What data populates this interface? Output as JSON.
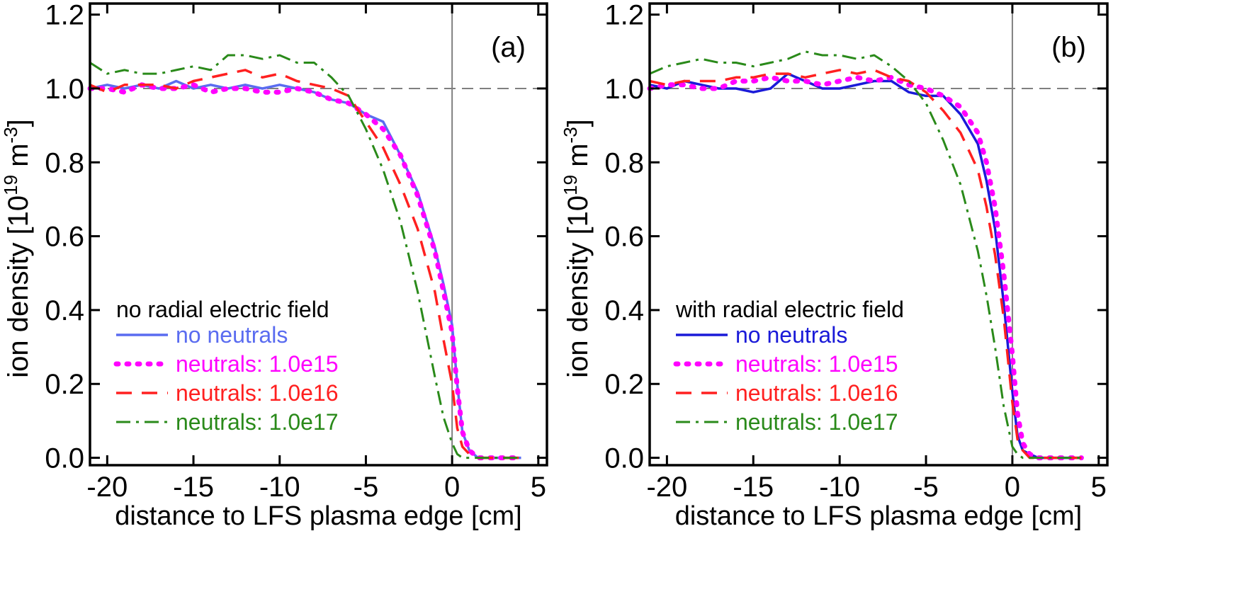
{
  "figure": {
    "panels": [
      {
        "label": "(a)",
        "legend_title": "no radial electric field"
      },
      {
        "label": "(b)",
        "legend_title": "with radial electric field"
      }
    ]
  },
  "chart_data": [
    {
      "type": "line",
      "panel_label": "(a)",
      "xlabel": "distance to LFS plasma edge [cm]",
      "ylabel": "ion density [10^19 m^-3]",
      "xlim": [
        -21,
        5.5
      ],
      "ylim": [
        -0.02,
        1.23
      ],
      "xticks": [
        -20,
        -15,
        -10,
        -5,
        0,
        5
      ],
      "xtick_labels": [
        "-20",
        "-15",
        "-10",
        "-5",
        "0",
        "5"
      ],
      "yticks": [
        0.0,
        0.2,
        0.4,
        0.6,
        0.8,
        1.0,
        1.2
      ],
      "ytick_labels": [
        "0.0",
        "0.2",
        "0.4",
        "0.6",
        "0.8",
        "1.0",
        "1.2"
      ],
      "reference_lines": {
        "horizontal": 1.0,
        "vertical": 0
      },
      "legend_title": "no radial electric field",
      "legend_placement": "lower-left",
      "series": [
        {
          "name": "no neutrals",
          "color": "#5a6cf0",
          "style": "solid",
          "x": [
            -21,
            -20,
            -19,
            -18,
            -17,
            -16,
            -15,
            -14,
            -13,
            -12,
            -11,
            -10,
            -9,
            -8,
            -7,
            -6,
            -5,
            -4,
            -3,
            -2,
            -1,
            -0.5,
            0,
            0.3,
            0.6,
            1,
            1.5,
            2,
            3,
            4
          ],
          "y": [
            1.0,
            1.01,
            1.0,
            1.01,
            1.0,
            1.02,
            1.0,
            1.01,
            1.0,
            1.01,
            1.0,
            1.01,
            1.0,
            0.99,
            0.97,
            0.96,
            0.93,
            0.91,
            0.82,
            0.72,
            0.57,
            0.47,
            0.36,
            0.2,
            0.07,
            0.02,
            0.0,
            0.0,
            0.0,
            0.0
          ]
        },
        {
          "name": "neutrals: 1.0e15",
          "color": "#ff00ff",
          "style": "dotted",
          "x": [
            -21,
            -20,
            -19,
            -18,
            -17,
            -16,
            -15,
            -14,
            -13,
            -12,
            -11,
            -10,
            -9,
            -8,
            -7,
            -6,
            -5,
            -4,
            -3,
            -2,
            -1,
            -0.5,
            0,
            0.3,
            0.6,
            1,
            1.5,
            2,
            3,
            4
          ],
          "y": [
            1.0,
            1.0,
            0.99,
            1.01,
            1.0,
            1.0,
            1.01,
            0.99,
            1.0,
            1.0,
            0.99,
            0.99,
            1.0,
            0.99,
            0.97,
            0.96,
            0.93,
            0.89,
            0.82,
            0.71,
            0.56,
            0.45,
            0.34,
            0.19,
            0.07,
            0.02,
            0.0,
            0.0,
            0.0,
            0.0
          ]
        },
        {
          "name": "neutrals: 1.0e16",
          "color": "#ff2020",
          "style": "dashed",
          "x": [
            -21,
            -20,
            -19,
            -18,
            -17,
            -16,
            -15,
            -14,
            -13,
            -12,
            -11,
            -10,
            -9,
            -8,
            -7,
            -6,
            -5,
            -4,
            -3,
            -2,
            -1,
            -0.5,
            0,
            0.3,
            0.6,
            1,
            1.5,
            2,
            3,
            4
          ],
          "y": [
            1.01,
            0.99,
            1.01,
            1.01,
            1.01,
            1.0,
            1.02,
            1.03,
            1.04,
            1.05,
            1.03,
            1.04,
            1.02,
            1.01,
            1.0,
            0.98,
            0.91,
            0.84,
            0.74,
            0.62,
            0.45,
            0.32,
            0.2,
            0.08,
            0.03,
            0.01,
            0.0,
            0.0,
            0.0,
            0.0
          ]
        },
        {
          "name": "neutrals: 1.0e17",
          "color": "#2a8a1a",
          "style": "dashdot",
          "x": [
            -21,
            -20,
            -19,
            -18,
            -17,
            -16,
            -15,
            -14,
            -13,
            -12,
            -11,
            -10,
            -9,
            -8,
            -7,
            -6,
            -5,
            -4,
            -3,
            -2,
            -1,
            -0.5,
            0,
            0.3,
            0.6,
            1,
            1.5,
            2,
            3,
            4
          ],
          "y": [
            1.07,
            1.04,
            1.05,
            1.04,
            1.04,
            1.05,
            1.06,
            1.05,
            1.09,
            1.09,
            1.08,
            1.09,
            1.07,
            1.07,
            1.03,
            0.98,
            0.89,
            0.78,
            0.64,
            0.45,
            0.22,
            0.11,
            0.04,
            0.01,
            0.0,
            0.0,
            0.0,
            0.0,
            0.0,
            0.0
          ]
        }
      ]
    },
    {
      "type": "line",
      "panel_label": "(b)",
      "xlabel": "distance to LFS plasma edge [cm]",
      "ylabel": "ion density [10^19 m^-3]",
      "xlim": [
        -21,
        5.5
      ],
      "ylim": [
        -0.02,
        1.23
      ],
      "xticks": [
        -20,
        -15,
        -10,
        -5,
        0,
        5
      ],
      "xtick_labels": [
        "-20",
        "-15",
        "-10",
        "-5",
        "0",
        "5"
      ],
      "yticks": [
        0.0,
        0.2,
        0.4,
        0.6,
        0.8,
        1.0,
        1.2
      ],
      "ytick_labels": [
        "0.0",
        "0.2",
        "0.4",
        "0.6",
        "0.8",
        "1.0",
        "1.2"
      ],
      "reference_lines": {
        "horizontal": 1.0,
        "vertical": 0
      },
      "legend_title": "with radial electric field",
      "legend_placement": "lower-left",
      "series": [
        {
          "name": "no neutrals",
          "color": "#1a1ad8",
          "style": "solid",
          "x": [
            -21,
            -20,
            -19,
            -18,
            -17,
            -16,
            -15,
            -14,
            -13,
            -12,
            -11,
            -10,
            -9,
            -8,
            -7,
            -6,
            -5,
            -4,
            -3,
            -2,
            -1.5,
            -1,
            -0.5,
            0,
            0.3,
            0.6,
            1,
            1.5,
            2,
            3,
            4
          ],
          "y": [
            1.01,
            1.0,
            1.02,
            1.01,
            1.0,
            1.0,
            0.99,
            1.0,
            1.04,
            1.02,
            1.0,
            1.0,
            1.01,
            1.02,
            1.02,
            0.99,
            0.98,
            0.98,
            0.93,
            0.85,
            0.75,
            0.62,
            0.42,
            0.18,
            0.06,
            0.02,
            0.01,
            0.0,
            0.0,
            0.0,
            0.0
          ]
        },
        {
          "name": "neutrals: 1.0e15",
          "color": "#ff00ff",
          "style": "dotted",
          "x": [
            -21,
            -20,
            -19,
            -18,
            -17,
            -16,
            -15,
            -14,
            -13,
            -12,
            -11,
            -10,
            -9,
            -8,
            -7,
            -6,
            -5,
            -4,
            -3,
            -2,
            -1.5,
            -1,
            -0.5,
            0,
            0.3,
            0.6,
            1,
            1.5,
            2,
            3,
            4
          ],
          "y": [
            1.0,
            1.01,
            1.01,
            1.0,
            1.0,
            1.02,
            1.02,
            1.03,
            1.02,
            1.02,
            1.01,
            1.02,
            1.03,
            1.02,
            1.03,
            1.01,
            1.0,
            0.98,
            0.95,
            0.88,
            0.8,
            0.68,
            0.5,
            0.28,
            0.12,
            0.04,
            0.01,
            0.0,
            0.0,
            0.0,
            0.0
          ]
        },
        {
          "name": "neutrals: 1.0e16",
          "color": "#ff2020",
          "style": "dashed",
          "x": [
            -21,
            -20,
            -19,
            -18,
            -17,
            -16,
            -15,
            -14,
            -13,
            -12,
            -11,
            -10,
            -9,
            -8,
            -7,
            -6,
            -5,
            -4,
            -3,
            -2,
            -1.5,
            -1,
            -0.5,
            0,
            0.3,
            0.6,
            1,
            1.5,
            2,
            3,
            4
          ],
          "y": [
            1.02,
            1.01,
            1.02,
            1.02,
            1.02,
            1.03,
            1.03,
            1.04,
            1.04,
            1.03,
            1.04,
            1.05,
            1.04,
            1.05,
            1.03,
            1.02,
            0.99,
            0.94,
            0.88,
            0.78,
            0.68,
            0.55,
            0.38,
            0.15,
            0.05,
            0.02,
            0.0,
            0.0,
            0.0,
            0.0,
            0.0
          ]
        },
        {
          "name": "neutrals: 1.0e17",
          "color": "#2a8a1a",
          "style": "dashdot",
          "x": [
            -21,
            -20,
            -19,
            -18,
            -17,
            -16,
            -15,
            -14,
            -13,
            -12,
            -11,
            -10,
            -9,
            -8,
            -7,
            -6,
            -5,
            -4,
            -3,
            -2,
            -1.5,
            -1,
            -0.5,
            0,
            0.3,
            0.6,
            1,
            1.5,
            2,
            3,
            4
          ],
          "y": [
            1.04,
            1.06,
            1.07,
            1.08,
            1.07,
            1.07,
            1.06,
            1.07,
            1.08,
            1.1,
            1.09,
            1.09,
            1.08,
            1.09,
            1.06,
            1.02,
            0.96,
            0.86,
            0.74,
            0.56,
            0.44,
            0.3,
            0.14,
            0.03,
            0.01,
            0.0,
            0.0,
            0.0,
            0.0,
            0.0,
            0.0
          ]
        }
      ]
    }
  ]
}
